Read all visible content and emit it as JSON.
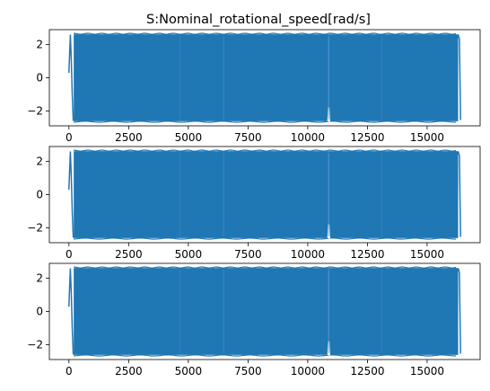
{
  "title": "S:Nominal_rotational_speed[rad/s]",
  "colors": {
    "series": "#1f77b4",
    "axis": "#000000",
    "background": "#ffffff"
  },
  "chart_data": [
    {
      "type": "line",
      "title": "S:Nominal_rotational_speed[rad/s]",
      "xlabel": "",
      "ylabel": "",
      "xlim": [
        -820,
        17220
      ],
      "ylim": [
        -2.9,
        2.9
      ],
      "xticks": [
        0,
        2500,
        5000,
        7500,
        10000,
        12500,
        15000
      ],
      "yticks": [
        -2,
        0,
        2
      ],
      "grid": false,
      "series": [
        {
          "amplitude": 2.62,
          "x_start": 0,
          "x_end": 16400,
          "start_value": 0.3,
          "segments": [
            {
              "x": [
                0,
                30,
                60,
                100,
                140,
                180,
                200
              ],
              "y": [
                0.3,
                1.5,
                2.6,
                1.0,
                -1.0,
                -2.55,
                -2.6
              ]
            },
            {
              "x": [
                10850,
                10880,
                10910,
                10940
              ],
              "y": [
                -2.62,
                -1.8,
                -2.62,
                -2.62
              ]
            },
            {
              "x": [
                16300,
                16350,
                16400
              ],
              "y": [
                2.6,
                2.35,
                -2.55
              ]
            }
          ]
        }
      ]
    },
    {
      "type": "line",
      "xlim": [
        -820,
        17220
      ],
      "ylim": [
        -2.9,
        2.9
      ],
      "xticks": [
        0,
        2500,
        5000,
        7500,
        10000,
        12500,
        15000
      ],
      "yticks": [
        -2,
        0,
        2
      ],
      "grid": false,
      "series": [
        {
          "amplitude": 2.62,
          "x_start": 0,
          "x_end": 16400,
          "start_value": 0.3,
          "segments": [
            {
              "x": [
                0,
                30,
                60,
                100,
                140,
                180,
                200
              ],
              "y": [
                0.3,
                1.5,
                2.6,
                1.0,
                -1.0,
                -2.55,
                -2.6
              ]
            },
            {
              "x": [
                10850,
                10880,
                10910,
                10940
              ],
              "y": [
                -2.62,
                -1.8,
                -2.62,
                -2.62
              ]
            },
            {
              "x": [
                16300,
                16350,
                16400
              ],
              "y": [
                2.6,
                2.35,
                -2.55
              ]
            }
          ]
        }
      ]
    },
    {
      "type": "line",
      "xlim": [
        -820,
        17220
      ],
      "ylim": [
        -2.9,
        2.9
      ],
      "xticks": [
        0,
        2500,
        5000,
        7500,
        10000,
        12500,
        15000
      ],
      "yticks": [
        -2,
        0,
        2
      ],
      "grid": false,
      "series": [
        {
          "amplitude": 2.62,
          "x_start": 0,
          "x_end": 16400,
          "start_value": 0.3,
          "segments": [
            {
              "x": [
                0,
                30,
                60,
                100,
                140,
                180,
                200
              ],
              "y": [
                0.3,
                1.5,
                2.6,
                1.0,
                -1.0,
                -2.55,
                -2.6
              ]
            },
            {
              "x": [
                10850,
                10880,
                10910,
                10940
              ],
              "y": [
                -2.62,
                -1.8,
                -2.62,
                -2.62
              ]
            },
            {
              "x": [
                16300,
                16350,
                16400
              ],
              "y": [
                2.6,
                2.35,
                -2.55
              ]
            }
          ]
        }
      ]
    }
  ]
}
